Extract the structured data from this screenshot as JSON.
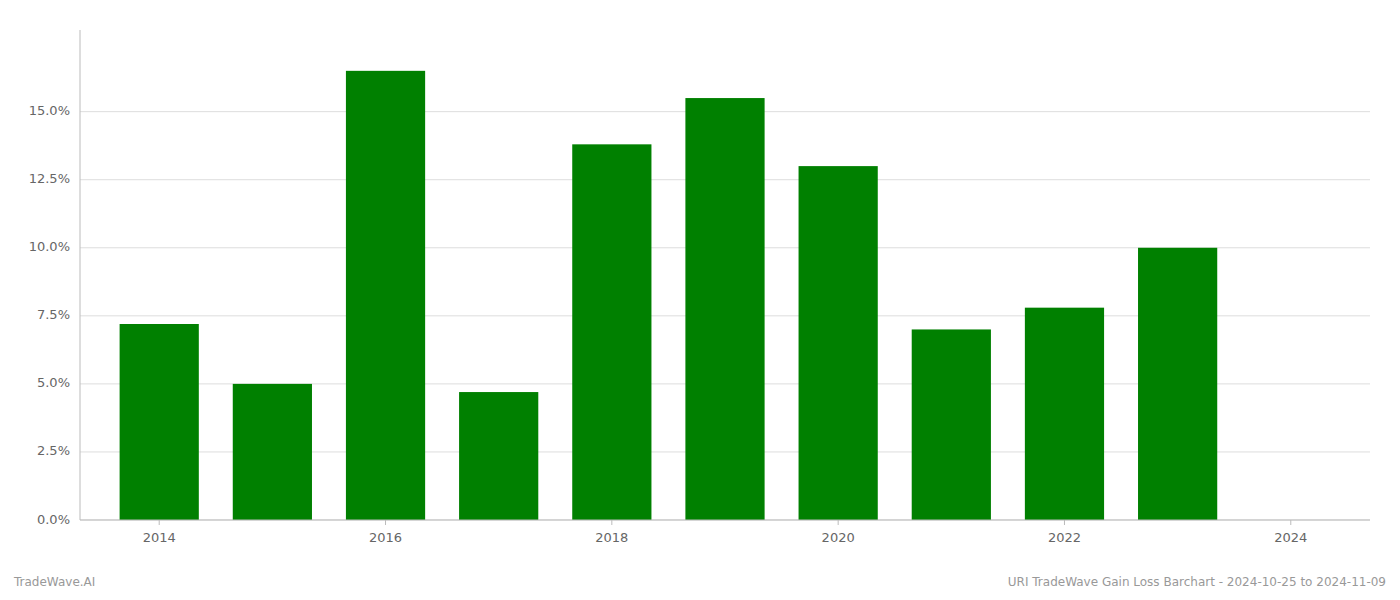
{
  "chart_data": {
    "type": "bar",
    "x": [
      2014,
      2015,
      2016,
      2017,
      2018,
      2019,
      2020,
      2021,
      2022,
      2023
    ],
    "values": [
      0.072,
      0.05,
      0.165,
      0.047,
      0.138,
      0.155,
      0.13,
      0.07,
      0.078,
      0.1
    ],
    "color": "#008000",
    "xlim": [
      2013.3,
      2024.7
    ],
    "xticks": [
      2014,
      2016,
      2018,
      2020,
      2022,
      2024
    ],
    "ylim": [
      0,
      0.18
    ],
    "yticks": [
      {
        "value": 0.0,
        "label": "0.0%"
      },
      {
        "value": 0.025,
        "label": "2.5%"
      },
      {
        "value": 0.05,
        "label": "5.0%"
      },
      {
        "value": 0.075,
        "label": "7.5%"
      },
      {
        "value": 0.1,
        "label": "10.0%"
      },
      {
        "value": 0.125,
        "label": "12.5%"
      },
      {
        "value": 0.15,
        "label": "15.0%"
      }
    ],
    "grid": true,
    "annotations": [
      "TradeWave.AI",
      "URI TradeWave Gain Loss Barchart - 2024-10-25 to 2024-11-09"
    ]
  }
}
